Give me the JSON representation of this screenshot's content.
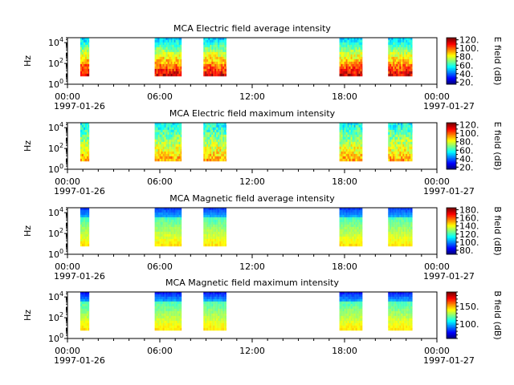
{
  "chart_data": [
    {
      "type": "heatmap",
      "title": "MCA  Electric field average intensity",
      "ylabel": "Hz",
      "xlim": [
        "1997-01-26T00:00",
        "1997-01-27T00:00"
      ],
      "ylim": [
        1,
        30000
      ],
      "yscale": "log",
      "x_ticks": [
        "00:00",
        "06:00",
        "12:00",
        "18:00",
        "00:00"
      ],
      "x_tick_dates": [
        "1997-01-26",
        "",
        "",
        "",
        "1997-01-27"
      ],
      "y_ticks": [
        "10",
        "10",
        "10"
      ],
      "y_tick_exponents": [
        "0",
        "2",
        "4"
      ],
      "data_freq_range": [
        6,
        31000
      ],
      "colorbar": {
        "label": "E field (dB)",
        "range": [
          15,
          125
        ],
        "ticks": [
          "20.",
          "40.",
          "60.",
          "80.",
          "100.",
          "120."
        ],
        "colormap": "jet"
      },
      "segments": [
        {
          "start": "00:50",
          "end": "01:25"
        },
        {
          "start": "05:40",
          "end": "07:25"
        },
        {
          "start": "08:50",
          "end": "10:20"
        },
        {
          "start": "17:40",
          "end": "19:10"
        },
        {
          "start": "20:50",
          "end": "22:25"
        }
      ],
      "intensity_profile": "high at low frequencies (red/yellow), decreasing to green/cyan above ~100 Hz"
    },
    {
      "type": "heatmap",
      "title": "MCA  Electric field maximum intensity",
      "ylabel": "Hz",
      "xlim": [
        "1997-01-26T00:00",
        "1997-01-27T00:00"
      ],
      "ylim": [
        1,
        30000
      ],
      "yscale": "log",
      "x_ticks": [
        "00:00",
        "06:00",
        "12:00",
        "18:00",
        "00:00"
      ],
      "x_tick_dates": [
        "1997-01-26",
        "",
        "",
        "",
        "1997-01-27"
      ],
      "y_ticks": [
        "10",
        "10",
        "10"
      ],
      "y_tick_exponents": [
        "0",
        "2",
        "4"
      ],
      "data_freq_range": [
        6,
        31000
      ],
      "colorbar": {
        "label": "E field (dB)",
        "range": [
          15,
          125
        ],
        "ticks": [
          "20.",
          "40.",
          "60.",
          "80.",
          "100.",
          "120."
        ],
        "colormap": "jet"
      },
      "segments": [
        {
          "start": "00:50",
          "end": "01:25"
        },
        {
          "start": "05:40",
          "end": "07:25"
        },
        {
          "start": "08:50",
          "end": "10:20"
        },
        {
          "start": "17:40",
          "end": "19:10"
        },
        {
          "start": "20:50",
          "end": "22:25"
        }
      ],
      "intensity_profile": "green/yellow at low frequencies, cyan at high frequencies"
    },
    {
      "type": "heatmap",
      "title": "MCA  Magnetic field average intensity",
      "ylabel": "Hz",
      "xlim": [
        "1997-01-26T00:00",
        "1997-01-27T00:00"
      ],
      "ylim": [
        1,
        30000
      ],
      "yscale": "log",
      "x_ticks": [
        "00:00",
        "06:00",
        "12:00",
        "18:00",
        "00:00"
      ],
      "x_tick_dates": [
        "1997-01-26",
        "",
        "",
        "",
        "1997-01-27"
      ],
      "y_ticks": [
        "10",
        "10",
        "10"
      ],
      "y_tick_exponents": [
        "0",
        "2",
        "4"
      ],
      "data_freq_range": [
        6,
        31000
      ],
      "colorbar": {
        "label": "B field (dB)",
        "range": [
          70,
          185
        ],
        "ticks": [
          "80.",
          "100.",
          "120.",
          "140.",
          "160.",
          "180."
        ],
        "colormap": "jet"
      },
      "segments": [
        {
          "start": "00:50",
          "end": "01:25"
        },
        {
          "start": "05:40",
          "end": "07:25"
        },
        {
          "start": "08:50",
          "end": "10:20"
        },
        {
          "start": "17:40",
          "end": "19:10"
        },
        {
          "start": "20:50",
          "end": "22:25"
        }
      ],
      "intensity_profile": "yellow at low frequencies, green mid, blue at high frequencies"
    },
    {
      "type": "heatmap",
      "title": "MCA  Magnetic field maximum intensity",
      "ylabel": "Hz",
      "xlim": [
        "1997-01-26T00:00",
        "1997-01-27T00:00"
      ],
      "ylim": [
        1,
        30000
      ],
      "yscale": "log",
      "x_ticks": [
        "00:00",
        "06:00",
        "12:00",
        "18:00",
        "00:00"
      ],
      "x_tick_dates": [
        "1997-01-26",
        "",
        "",
        "",
        "1997-01-27"
      ],
      "y_ticks": [
        "10",
        "10",
        "10"
      ],
      "y_tick_exponents": [
        "0",
        "2",
        "4"
      ],
      "data_freq_range": [
        6,
        31000
      ],
      "colorbar": {
        "label": "B field (dB)",
        "range": [
          60,
          190
        ],
        "ticks": [
          "100.",
          "150."
        ],
        "colormap": "jet"
      },
      "segments": [
        {
          "start": "00:50",
          "end": "01:25"
        },
        {
          "start": "05:40",
          "end": "07:25"
        },
        {
          "start": "08:50",
          "end": "10:20"
        },
        {
          "start": "17:40",
          "end": "19:10"
        },
        {
          "start": "20:50",
          "end": "22:25"
        }
      ],
      "intensity_profile": "yellow at low frequencies, green mid, blue at high frequencies"
    }
  ]
}
